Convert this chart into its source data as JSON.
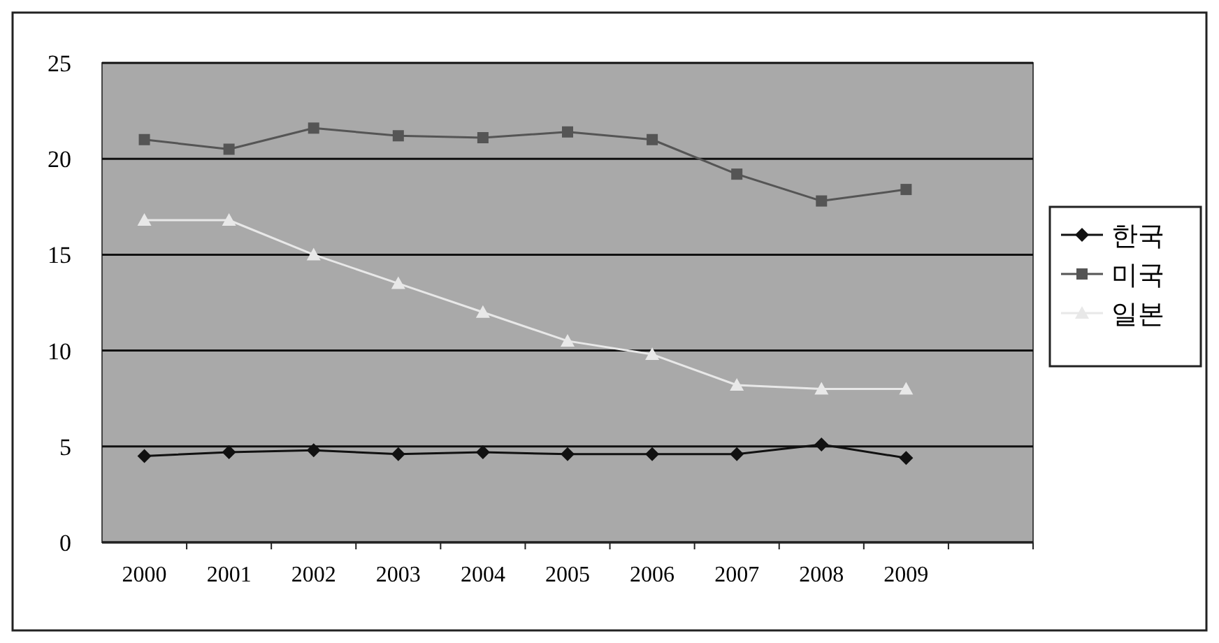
{
  "chart_data": {
    "type": "line",
    "categories": [
      "2000",
      "2001",
      "2002",
      "2003",
      "2004",
      "2005",
      "2006",
      "2007",
      "2008",
      "2009",
      null
    ],
    "series": [
      {
        "name": "한국",
        "color": "#111111",
        "marker": "diamond",
        "values": [
          4.5,
          4.7,
          4.8,
          4.6,
          4.7,
          4.6,
          4.6,
          4.6,
          5.1,
          4.4,
          null
        ]
      },
      {
        "name": "미국",
        "color": "#555555",
        "marker": "square",
        "values": [
          21.0,
          20.5,
          21.6,
          21.2,
          21.1,
          21.4,
          21.0,
          19.2,
          17.8,
          18.4,
          null
        ]
      },
      {
        "name": "일본",
        "color": "#e8e8e8",
        "marker": "triangle",
        "values": [
          16.8,
          16.8,
          15.0,
          13.5,
          12.0,
          10.5,
          9.8,
          8.2,
          8.0,
          8.0,
          null
        ]
      }
    ],
    "ylim": [
      0,
      25
    ],
    "yticks": [
      0,
      5,
      10,
      15,
      20,
      25
    ],
    "grid": "y",
    "legend": "right"
  }
}
